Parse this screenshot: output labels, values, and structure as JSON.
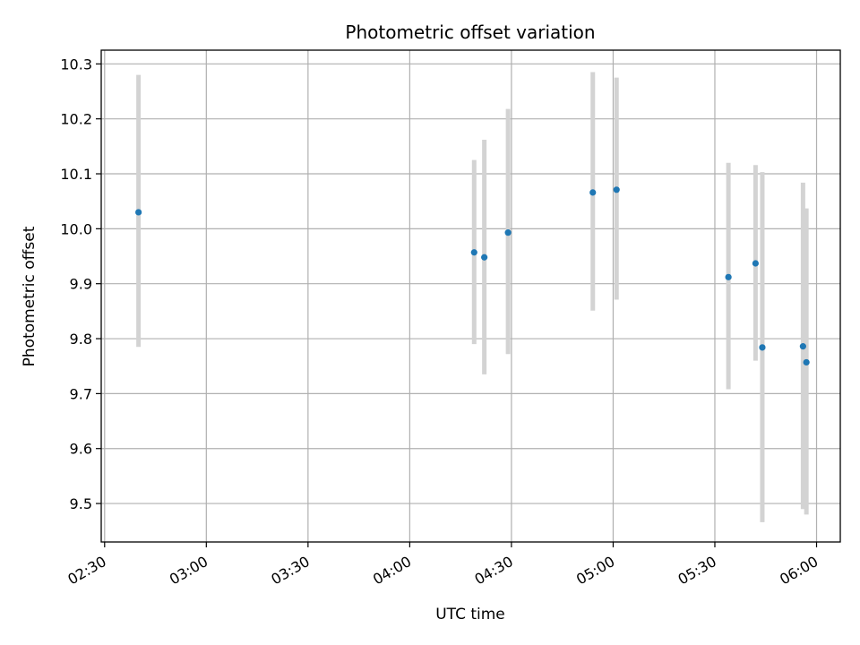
{
  "chart_data": {
    "type": "scatter",
    "title": "Photometric offset variation",
    "xlabel": "UTC time",
    "ylabel": "Photometric offset",
    "xlim": [
      "02:29",
      "06:07"
    ],
    "ylim": [
      9.43,
      10.325
    ],
    "x_ticks": [
      "02:30",
      "03:00",
      "03:30",
      "04:00",
      "04:30",
      "05:00",
      "05:30",
      "06:00"
    ],
    "y_ticks": [
      "9.5",
      "9.6",
      "9.7",
      "9.8",
      "9.9",
      "10.0",
      "10.1",
      "10.2",
      "10.3"
    ],
    "grid": true,
    "point_color": "#1f77b4",
    "errorbar_color": "#d3d3d3",
    "points": [
      {
        "x": "02:40",
        "y": 10.03,
        "y_low": 9.785,
        "y_high": 10.28
      },
      {
        "x": "04:19",
        "y": 9.957,
        "y_low": 9.79,
        "y_high": 10.125
      },
      {
        "x": "04:22",
        "y": 9.948,
        "y_low": 9.735,
        "y_high": 10.162
      },
      {
        "x": "04:29",
        "y": 9.993,
        "y_low": 9.772,
        "y_high": 10.218
      },
      {
        "x": "04:54",
        "y": 10.066,
        "y_low": 9.851,
        "y_high": 10.285
      },
      {
        "x": "05:01",
        "y": 10.071,
        "y_low": 9.871,
        "y_high": 10.275
      },
      {
        "x": "05:34",
        "y": 9.912,
        "y_low": 9.708,
        "y_high": 10.12
      },
      {
        "x": "05:42",
        "y": 9.937,
        "y_low": 9.76,
        "y_high": 10.116
      },
      {
        "x": "05:44",
        "y": 9.784,
        "y_low": 9.466,
        "y_high": 10.103
      },
      {
        "x": "05:56",
        "y": 9.786,
        "y_low": 9.49,
        "y_high": 10.084
      },
      {
        "x": "05:57",
        "y": 9.757,
        "y_low": 9.48,
        "y_high": 10.037
      }
    ]
  }
}
